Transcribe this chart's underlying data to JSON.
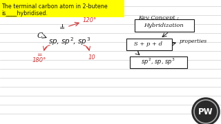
{
  "bg_color": "#ffffff",
  "title_bg": "#ffff00",
  "line_color": "#bbbbbb",
  "title_line1": "The terminal carbon atom in 2-butene",
  "title_line2": "is____hybridised.",
  "red_color": "#cc3333",
  "dark_color": "#1a1a1a",
  "angle_120": "120°",
  "angle_180": "180°",
  "angle_10": "10",
  "key_concept": "Key Concept :",
  "hybridisation": "Hybridization",
  "s_p_d": "S + p + d",
  "properties": "properties",
  "sp_types": "sp², sp, sp³",
  "c_label": "C",
  "pw_bg": "#2a2a2a",
  "pw_ring": "#aaaaaa"
}
